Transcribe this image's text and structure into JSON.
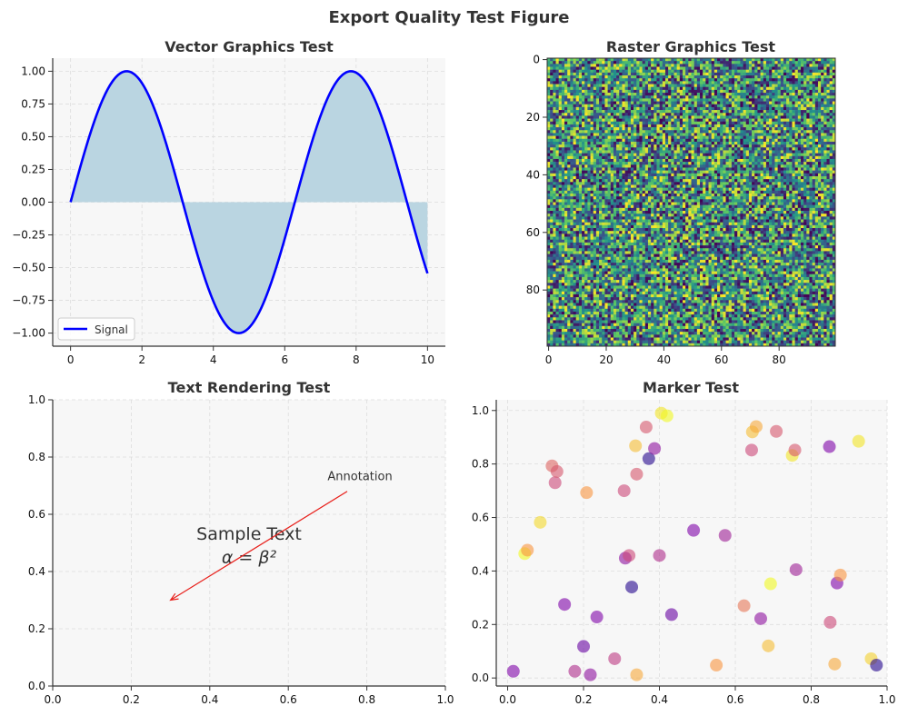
{
  "figure": {
    "title": "Export Quality Test Figure"
  },
  "chart_data": [
    {
      "type": "line",
      "title": "Vector Graphics Test",
      "xlabel": "",
      "ylabel": "",
      "xlim": [
        -0.5,
        10.5
      ],
      "ylim": [
        -1.1,
        1.1
      ],
      "xticks": [
        0,
        2,
        4,
        6,
        8,
        10
      ],
      "yticks": [
        -1.0,
        -0.75,
        -0.5,
        -0.25,
        0.0,
        0.25,
        0.5,
        0.75,
        1.0
      ],
      "xtick_labels": [
        "0",
        "2",
        "4",
        "6",
        "8",
        "10"
      ],
      "ytick_labels": [
        "−1.00",
        "−0.75",
        "−0.50",
        "−0.25",
        "0.00",
        "0.25",
        "0.50",
        "0.75",
        "1.00"
      ],
      "grid": true,
      "series": [
        {
          "name": "Signal",
          "function": "sin(x)",
          "x_range": [
            0,
            10
          ],
          "color": "#0000ff",
          "fill_to_zero": true,
          "fill_color": "#bad5e1"
        }
      ],
      "legend": {
        "location": "lower-left",
        "entries": [
          "Signal"
        ]
      }
    },
    {
      "type": "heatmap",
      "title": "Raster Graphics Test",
      "rows": 100,
      "cols": 100,
      "values": "uniform random in [0, 1]",
      "colormap": "viridis",
      "colormap_stops": [
        "#440154",
        "#3b528b",
        "#21918c",
        "#5ec962",
        "#fde725"
      ],
      "y_axis_inverted": true,
      "xticks": [
        0,
        20,
        40,
        60,
        80
      ],
      "yticks": [
        0,
        20,
        40,
        60,
        80
      ],
      "xtick_labels": [
        "0",
        "20",
        "40",
        "60",
        "80"
      ],
      "ytick_labels": [
        "0",
        "20",
        "40",
        "60",
        "80"
      ]
    },
    {
      "type": "scatter",
      "title": "Text Rendering Test",
      "xlim": [
        0,
        1
      ],
      "ylim": [
        0,
        1
      ],
      "xticks": [
        0,
        0.2,
        0.4,
        0.6,
        0.8,
        1.0
      ],
      "yticks": [
        0,
        0.2,
        0.4,
        0.6,
        0.8,
        1.0
      ],
      "xtick_labels": [
        "0.0",
        "0.2",
        "0.4",
        "0.6",
        "0.8",
        "1.0"
      ],
      "ytick_labels": [
        "0.0",
        "0.2",
        "0.4",
        "0.6",
        "0.8",
        "1.0"
      ],
      "grid": true,
      "texts": [
        {
          "text": "Sample Text",
          "x": 0.5,
          "y": 0.53
        },
        {
          "text": "α = β²",
          "x": 0.5,
          "y": 0.45
        }
      ],
      "annotation": {
        "text": "Annotation",
        "text_xy": [
          0.7,
          0.7
        ],
        "arrow_to": [
          0.3,
          0.3
        ],
        "arrow_color": "#e8211c"
      }
    },
    {
      "type": "scatter",
      "title": "Marker Test",
      "xlim": [
        -0.03,
        1.0
      ],
      "ylim": [
        -0.03,
        1.04
      ],
      "xticks": [
        0,
        0.2,
        0.4,
        0.6,
        0.8,
        1.0
      ],
      "yticks": [
        0,
        0.2,
        0.4,
        0.6,
        0.8,
        1.0
      ],
      "xtick_labels": [
        "0.0",
        "0.2",
        "0.4",
        "0.6",
        "0.8",
        "1.0"
      ],
      "ytick_labels": [
        "0.0",
        "0.2",
        "0.4",
        "0.6",
        "0.8",
        "1.0"
      ],
      "grid": true,
      "colormap": "plasma",
      "alpha": 0.6,
      "points": [
        {
          "x": 0.015,
          "y": 0.025,
          "c": 0.25
        },
        {
          "x": 0.045,
          "y": 0.465,
          "c": 1.0
        },
        {
          "x": 0.052,
          "y": 0.478,
          "c": 0.75
        },
        {
          "x": 0.086,
          "y": 0.582,
          "c": 0.92
        },
        {
          "x": 0.117,
          "y": 0.793,
          "c": 0.6
        },
        {
          "x": 0.125,
          "y": 0.73,
          "c": 0.5
        },
        {
          "x": 0.13,
          "y": 0.772,
          "c": 0.55
        },
        {
          "x": 0.15,
          "y": 0.275,
          "c": 0.25
        },
        {
          "x": 0.177,
          "y": 0.025,
          "c": 0.4
        },
        {
          "x": 0.2,
          "y": 0.118,
          "c": 0.2
        },
        {
          "x": 0.208,
          "y": 0.693,
          "c": 0.75
        },
        {
          "x": 0.218,
          "y": 0.012,
          "c": 0.3
        },
        {
          "x": 0.235,
          "y": 0.228,
          "c": 0.25
        },
        {
          "x": 0.282,
          "y": 0.072,
          "c": 0.45
        },
        {
          "x": 0.307,
          "y": 0.7,
          "c": 0.5
        },
        {
          "x": 0.31,
          "y": 0.448,
          "c": 0.3
        },
        {
          "x": 0.32,
          "y": 0.458,
          "c": 0.5
        },
        {
          "x": 0.327,
          "y": 0.34,
          "c": 0.05
        },
        {
          "x": 0.337,
          "y": 0.868,
          "c": 0.85
        },
        {
          "x": 0.34,
          "y": 0.012,
          "c": 0.8
        },
        {
          "x": 0.34,
          "y": 0.762,
          "c": 0.55
        },
        {
          "x": 0.365,
          "y": 0.938,
          "c": 0.55
        },
        {
          "x": 0.372,
          "y": 0.82,
          "c": 0.05
        },
        {
          "x": 0.387,
          "y": 0.858,
          "c": 0.3
        },
        {
          "x": 0.4,
          "y": 0.458,
          "c": 0.4
        },
        {
          "x": 0.405,
          "y": 0.99,
          "c": 0.95
        },
        {
          "x": 0.42,
          "y": 0.98,
          "c": 1.0
        },
        {
          "x": 0.432,
          "y": 0.237,
          "c": 0.2
        },
        {
          "x": 0.49,
          "y": 0.552,
          "c": 0.25
        },
        {
          "x": 0.55,
          "y": 0.048,
          "c": 0.75
        },
        {
          "x": 0.573,
          "y": 0.533,
          "c": 0.35
        },
        {
          "x": 0.623,
          "y": 0.27,
          "c": 0.65
        },
        {
          "x": 0.643,
          "y": 0.852,
          "c": 0.5
        },
        {
          "x": 0.645,
          "y": 0.92,
          "c": 0.85
        },
        {
          "x": 0.655,
          "y": 0.94,
          "c": 0.8
        },
        {
          "x": 0.667,
          "y": 0.222,
          "c": 0.3
        },
        {
          "x": 0.687,
          "y": 0.12,
          "c": 0.85
        },
        {
          "x": 0.693,
          "y": 0.352,
          "c": 1.0
        },
        {
          "x": 0.708,
          "y": 0.922,
          "c": 0.55
        },
        {
          "x": 0.75,
          "y": 0.832,
          "c": 0.95
        },
        {
          "x": 0.757,
          "y": 0.852,
          "c": 0.55
        },
        {
          "x": 0.76,
          "y": 0.405,
          "c": 0.35
        },
        {
          "x": 0.848,
          "y": 0.865,
          "c": 0.25
        },
        {
          "x": 0.85,
          "y": 0.208,
          "c": 0.5
        },
        {
          "x": 0.862,
          "y": 0.052,
          "c": 0.8
        },
        {
          "x": 0.868,
          "y": 0.355,
          "c": 0.25
        },
        {
          "x": 0.877,
          "y": 0.385,
          "c": 0.75
        },
        {
          "x": 0.925,
          "y": 0.885,
          "c": 0.95
        },
        {
          "x": 0.958,
          "y": 0.072,
          "c": 0.9
        },
        {
          "x": 0.972,
          "y": 0.048,
          "c": 0.05
        }
      ]
    }
  ]
}
